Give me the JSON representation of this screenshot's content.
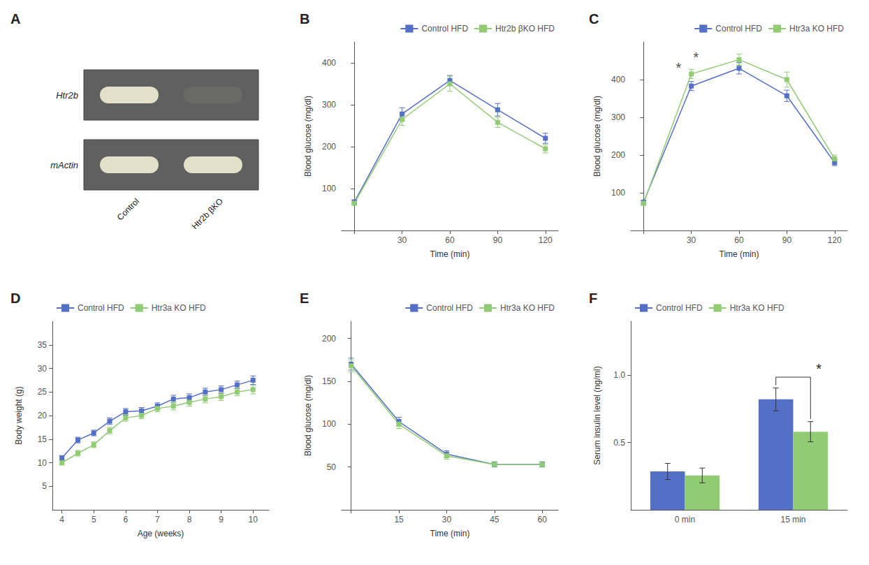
{
  "chart_data": [
    {
      "type": "gel",
      "title": "A",
      "rows": [
        "Htr2b",
        "mActin"
      ],
      "lanes": [
        "Control",
        "Htr2b βKO"
      ],
      "bands": [
        [
          true,
          false
        ],
        [
          true,
          true
        ]
      ]
    },
    {
      "type": "line",
      "title": "B",
      "xlabel": "Time (min)",
      "ylabel": "Blood glucose (mg/dl)",
      "x": [
        0,
        30,
        60,
        90,
        120
      ],
      "series": [
        {
          "name": "Control HFD",
          "color": "#5470c6",
          "marker": "square",
          "values": [
            68,
            278,
            358,
            288,
            220
          ],
          "errors": [
            5,
            15,
            12,
            15,
            12
          ]
        },
        {
          "name": "Htr2b βKO HFD",
          "color": "#91cc75",
          "marker": "square",
          "values": [
            65,
            265,
            350,
            258,
            195
          ],
          "errors": [
            4,
            14,
            18,
            12,
            10
          ]
        }
      ],
      "xlim": [
        -8,
        128
      ],
      "xticks": [
        {
          "value": 0,
          "label": ""
        },
        30,
        60,
        90,
        120
      ],
      "ylim": [
        0,
        450
      ],
      "yticks": [
        100,
        200,
        300,
        400
      ],
      "grid": false,
      "legend": "upper right"
    },
    {
      "type": "line",
      "title": "C",
      "xlabel": "Time (min)",
      "ylabel": "Blood glucose (mg/dl)",
      "x": [
        0,
        30,
        60,
        90,
        120
      ],
      "series": [
        {
          "name": "Control HFD",
          "color": "#5470c6",
          "marker": "square",
          "values": [
            75,
            383,
            430,
            357,
            180
          ],
          "errors": [
            5,
            12,
            15,
            15,
            8
          ]
        },
        {
          "name": "Htr3a KO HFD",
          "color": "#91cc75",
          "marker": "square",
          "values": [
            72,
            415,
            453,
            400,
            190
          ],
          "errors": [
            5,
            12,
            15,
            20,
            10
          ]
        }
      ],
      "xlim": [
        -8,
        128
      ],
      "xticks": [
        {
          "value": 0,
          "label": ""
        },
        30,
        60,
        90,
        120
      ],
      "ylim": [
        0,
        500
      ],
      "yticks": [
        100,
        200,
        300,
        400
      ],
      "annotations": [
        {
          "text": "*",
          "x": 22,
          "y": 413
        },
        {
          "text": "*",
          "x": 33,
          "y": 441
        }
      ],
      "grid": false,
      "legend": "upper right"
    },
    {
      "type": "line",
      "title": "D",
      "xlabel": "Age (weeks)",
      "ylabel": "Body weight (g)",
      "x": [
        4.0,
        4.5,
        5.0,
        5.5,
        6.0,
        6.5,
        7.0,
        7.5,
        8.0,
        8.5,
        9.0,
        9.5,
        10.0
      ],
      "series": [
        {
          "name": "Control HFD",
          "color": "#5470c6",
          "marker": "square",
          "values": [
            11.0,
            14.8,
            16.3,
            18.8,
            20.8,
            21.0,
            22.0,
            23.5,
            23.8,
            25.0,
            25.5,
            26.5,
            27.5
          ],
          "errors": [
            0.5,
            0.6,
            0.6,
            0.7,
            0.7,
            0.7,
            0.7,
            0.8,
            0.8,
            0.8,
            0.8,
            0.8,
            0.9
          ]
        },
        {
          "name": "Htr3a KO HFD",
          "color": "#91cc75",
          "marker": "square",
          "values": [
            10.0,
            12.0,
            13.8,
            16.8,
            19.5,
            20.0,
            21.5,
            22.0,
            22.8,
            23.5,
            24.0,
            25.0,
            25.5
          ],
          "errors": [
            0.5,
            0.6,
            0.6,
            0.7,
            0.7,
            0.7,
            0.7,
            0.8,
            0.8,
            0.8,
            0.8,
            0.8,
            0.9
          ]
        }
      ],
      "xlim": [
        3.7,
        10.5
      ],
      "xticks": [
        4,
        5,
        6,
        7,
        8,
        9,
        10
      ],
      "ylim": [
        0,
        40
      ],
      "yticks": [
        5,
        10,
        15,
        20,
        25,
        30,
        35
      ],
      "grid": false,
      "legend": "upper left"
    },
    {
      "type": "line",
      "title": "E",
      "xlabel": "Time (min)",
      "ylabel": "Blood glucose (mg/dl)",
      "x": [
        0,
        15,
        30,
        45,
        60
      ],
      "series": [
        {
          "name": "Control HFD",
          "color": "#5470c6",
          "marker": "square",
          "values": [
            170,
            103,
            65,
            53,
            53
          ],
          "errors": [
            7,
            5,
            4,
            3,
            3
          ]
        },
        {
          "name": "Htr3a KO HFD",
          "color": "#91cc75",
          "marker": "square",
          "values": [
            168,
            100,
            63,
            53,
            53
          ],
          "errors": [
            7,
            5,
            4,
            3,
            3
          ]
        }
      ],
      "xlim": [
        -3,
        65
      ],
      "xticks": [
        {
          "value": 0,
          "label": ""
        },
        15,
        30,
        45,
        60
      ],
      "ylim": [
        0,
        220
      ],
      "yticks": [
        50,
        100,
        150,
        200
      ],
      "grid": false,
      "legend": "upper right"
    },
    {
      "type": "bar",
      "title": "F",
      "ylabel": "Serum insulin level (ng/ml)",
      "categories": [
        "0 min",
        "15 min"
      ],
      "series": [
        {
          "name": "Control HFD",
          "color": "#5470c6",
          "values": [
            0.285,
            0.82
          ],
          "errors": [
            0.06,
            0.085
          ]
        },
        {
          "name": "Htr3a KO HFD",
          "color": "#91cc75",
          "values": [
            0.255,
            0.58
          ],
          "errors": [
            0.055,
            0.075
          ]
        }
      ],
      "ylim": [
        0,
        1.4
      ],
      "yticks": [
        0.5,
        {
          "value": 1.0,
          "label": "1.0"
        }
      ],
      "annotations": [
        {
          "text": "*",
          "between": "15 min",
          "y": 0.985,
          "ends": [
            0.925,
            0.675
          ]
        }
      ],
      "grid": false,
      "legend": "upper left"
    }
  ]
}
